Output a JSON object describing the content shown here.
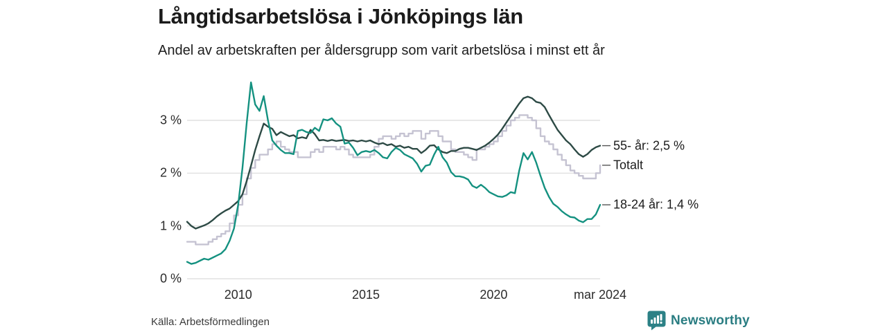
{
  "header": {
    "title": "Långtidsarbetslösa i Jönköpings län",
    "subtitle": "Andel av arbetskraften per åldersgrupp som varit arbetslösa i minst ett år"
  },
  "chart_data": {
    "type": "line",
    "title": "Långtidsarbetslösa i Jönköpings län",
    "subtitle": "Andel av arbetskraften per åldersgrupp som varit arbetslösa i minst ett år",
    "unit": "% av arbetskraften",
    "grid": true,
    "legend_position": "end-of-line-labels",
    "x_start": 2008.0,
    "x_end": 2024.1667,
    "x_step_months": 2,
    "x_axis": {
      "ticks": [
        {
          "label": "2010",
          "year": 2010
        },
        {
          "label": "2015",
          "year": 2015
        },
        {
          "label": "2020",
          "year": 2020
        },
        {
          "label": "mar 2024",
          "year": 2024.1667
        }
      ]
    },
    "y_axis": {
      "tick_values": [
        0,
        1,
        2,
        3
      ],
      "tick_labels": [
        "0 %",
        "1 %",
        "2 %",
        "3 %"
      ],
      "ylim": [
        0,
        3.85
      ]
    },
    "series": [
      {
        "name": "Totalt",
        "end_label": "Totalt",
        "end_value": 2.15,
        "color": "#c5c3d2",
        "step": true,
        "values": [
          0.7,
          0.7,
          0.65,
          0.65,
          0.65,
          0.7,
          0.75,
          0.8,
          0.85,
          0.9,
          1.05,
          1.2,
          1.4,
          1.6,
          1.9,
          2.1,
          2.25,
          2.35,
          2.35,
          2.45,
          2.55,
          2.6,
          2.5,
          2.45,
          2.4,
          2.4,
          2.3,
          2.3,
          2.3,
          2.4,
          2.45,
          2.4,
          2.5,
          2.5,
          2.5,
          2.45,
          2.5,
          2.45,
          2.35,
          2.3,
          2.3,
          2.3,
          2.3,
          2.35,
          2.5,
          2.65,
          2.7,
          2.7,
          2.65,
          2.7,
          2.75,
          2.7,
          2.75,
          2.8,
          2.8,
          2.65,
          2.75,
          2.8,
          2.8,
          2.7,
          2.6,
          2.6,
          2.45,
          2.4,
          2.4,
          2.35,
          2.3,
          2.25,
          2.45,
          2.45,
          2.5,
          2.55,
          2.6,
          2.7,
          2.8,
          2.9,
          3.0,
          3.05,
          3.1,
          3.1,
          3.05,
          3.0,
          2.85,
          2.7,
          2.6,
          2.55,
          2.45,
          2.35,
          2.25,
          2.15,
          2.05,
          2.0,
          1.95,
          1.9,
          1.9,
          1.9,
          2.0,
          2.15
        ]
      },
      {
        "name": "55- år",
        "end_label": "55- år: 2,5 %",
        "end_value": 2.5,
        "color": "#2d4a45",
        "step": false,
        "values": [
          1.08,
          1.0,
          0.95,
          0.98,
          1.01,
          1.05,
          1.11,
          1.18,
          1.24,
          1.29,
          1.33,
          1.4,
          1.47,
          1.6,
          1.85,
          2.14,
          2.44,
          2.7,
          2.94,
          2.88,
          2.84,
          2.72,
          2.78,
          2.74,
          2.7,
          2.72,
          2.66,
          2.68,
          2.66,
          2.82,
          2.74,
          2.62,
          2.63,
          2.61,
          2.63,
          2.61,
          2.62,
          2.63,
          2.61,
          2.62,
          2.6,
          2.62,
          2.6,
          2.62,
          2.58,
          2.55,
          2.57,
          2.53,
          2.55,
          2.5,
          2.52,
          2.48,
          2.5,
          2.46,
          2.46,
          2.38,
          2.44,
          2.52,
          2.53,
          2.45,
          2.4,
          2.38,
          2.42,
          2.42,
          2.46,
          2.48,
          2.48,
          2.46,
          2.44,
          2.48,
          2.52,
          2.58,
          2.65,
          2.73,
          2.84,
          2.96,
          3.08,
          3.2,
          3.32,
          3.42,
          3.45,
          3.42,
          3.35,
          3.33,
          3.25,
          3.1,
          2.96,
          2.82,
          2.72,
          2.62,
          2.55,
          2.45,
          2.36,
          2.31,
          2.36,
          2.44,
          2.49,
          2.52
        ]
      },
      {
        "name": "18-24 år",
        "end_label": "18-24 år: 1,4 %",
        "end_value": 1.4,
        "color": "#149180",
        "step": false,
        "values": [
          0.32,
          0.28,
          0.3,
          0.34,
          0.38,
          0.36,
          0.4,
          0.44,
          0.48,
          0.56,
          0.72,
          0.95,
          1.4,
          2.1,
          2.95,
          3.72,
          3.3,
          3.18,
          3.46,
          3.0,
          2.62,
          2.52,
          2.44,
          2.38,
          2.38,
          2.36,
          2.8,
          2.82,
          2.78,
          2.76,
          2.86,
          2.8,
          3.02,
          3.0,
          3.04,
          2.94,
          2.88,
          2.56,
          2.58,
          2.48,
          2.34,
          2.4,
          2.42,
          2.4,
          2.44,
          2.38,
          2.3,
          2.28,
          2.4,
          2.48,
          2.44,
          2.36,
          2.32,
          2.28,
          2.18,
          2.03,
          2.14,
          2.16,
          2.35,
          2.5,
          2.3,
          2.2,
          2.02,
          1.94,
          1.94,
          1.92,
          1.88,
          1.76,
          1.72,
          1.78,
          1.72,
          1.64,
          1.6,
          1.56,
          1.55,
          1.58,
          1.64,
          1.62,
          2.05,
          2.38,
          2.26,
          2.4,
          2.2,
          1.95,
          1.72,
          1.55,
          1.42,
          1.36,
          1.28,
          1.22,
          1.17,
          1.16,
          1.1,
          1.07,
          1.13,
          1.13,
          1.22,
          1.4
        ]
      }
    ]
  },
  "footer": {
    "source": "Källa: Arbetsförmedlingen",
    "brand": "Newsworthy"
  },
  "colors": {
    "grid": "#d9d9d9",
    "leader": "#555555",
    "brand_teal": "#2a7d82",
    "series_55": "#2d4a45",
    "series_total": "#c5c3d2",
    "series_1824": "#149180"
  }
}
